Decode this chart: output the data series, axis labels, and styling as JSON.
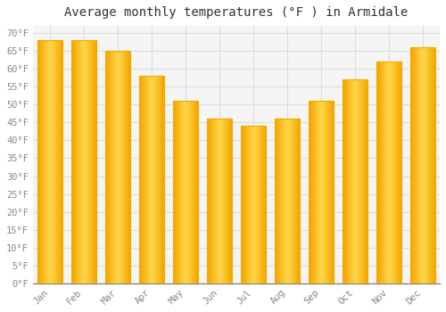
{
  "title": "Average monthly temperatures (°F ) in Armidale",
  "months": [
    "Jan",
    "Feb",
    "Mar",
    "Apr",
    "May",
    "Jun",
    "Jul",
    "Aug",
    "Sep",
    "Oct",
    "Nov",
    "Dec"
  ],
  "values": [
    68,
    68,
    65,
    58,
    51,
    46,
    44,
    46,
    51,
    57,
    62,
    66
  ],
  "bar_color_center": "#FFD84D",
  "bar_color_edge": "#F5A800",
  "background_color": "#FFFFFF",
  "plot_bg_color": "#F5F5F5",
  "grid_color": "#DDDDDD",
  "yticks": [
    0,
    5,
    10,
    15,
    20,
    25,
    30,
    35,
    40,
    45,
    50,
    55,
    60,
    65,
    70
  ],
  "ylim": [
    0,
    72
  ],
  "title_fontsize": 10,
  "tick_fontsize": 7.5,
  "tick_color": "#888888",
  "font_family": "monospace",
  "bar_width": 0.75
}
